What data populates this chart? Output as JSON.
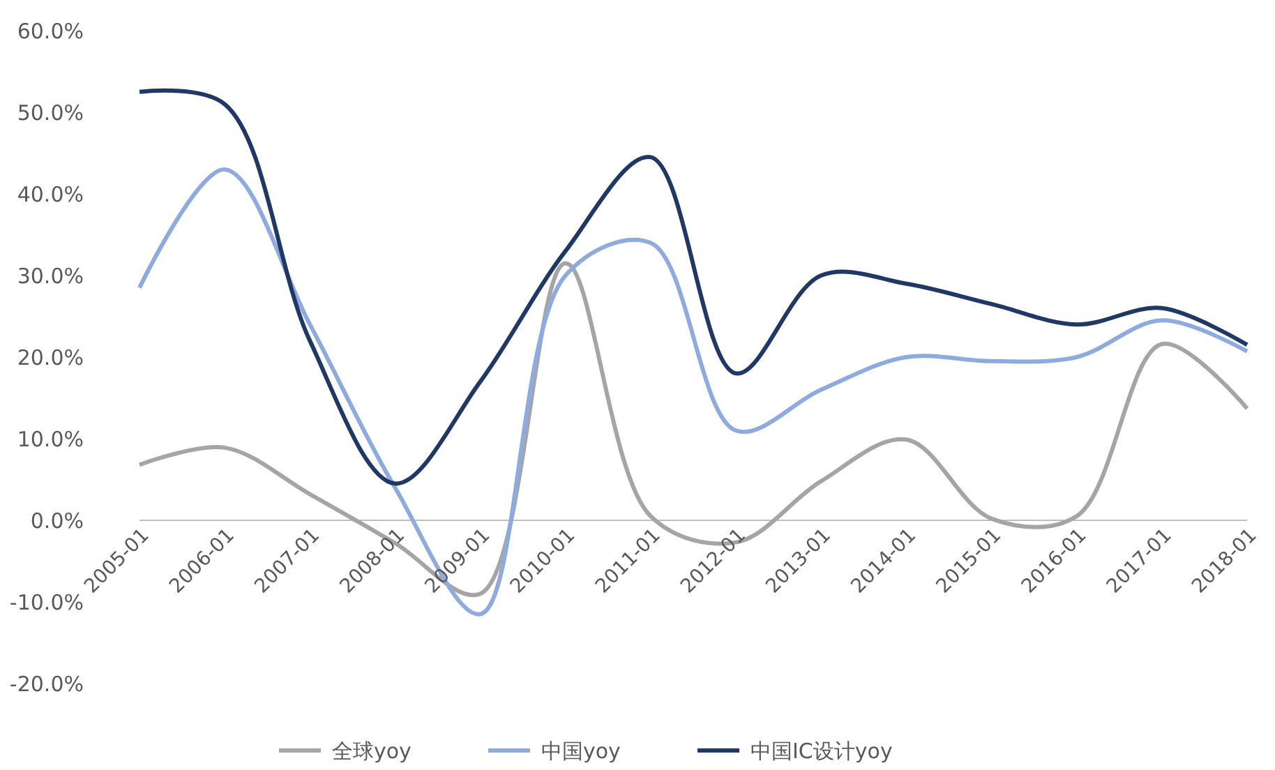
{
  "chart_data": {
    "type": "line",
    "categories": [
      "2005-01",
      "2006-01",
      "2007-01",
      "2008-01",
      "2009-01",
      "2010-01",
      "2011-01",
      "2012-01",
      "2013-01",
      "2014-01",
      "2015-01",
      "2016-01",
      "2017-01",
      "2018-01"
    ],
    "series": [
      {
        "name": "全球yoy",
        "color": "#a5a5a5",
        "values": [
          6.8,
          8.9,
          3.2,
          -2.8,
          -9,
          31.5,
          0.5,
          -2.7,
          4.8,
          9.9,
          0.2,
          0.5,
          21.6,
          13.7
        ]
      },
      {
        "name": "中国yoy",
        "color": "#8faadc",
        "values": [
          28.5,
          43,
          24,
          4,
          -11.5,
          30,
          34,
          11,
          16,
          20,
          19.5,
          20,
          24.5,
          20.7
        ]
      },
      {
        "name": "中国IC设计yoy",
        "color": "#203864",
        "values": [
          52.5,
          51,
          22,
          4.5,
          17,
          33,
          44.5,
          18,
          30,
          29,
          26.5,
          24,
          26,
          21.5
        ]
      }
    ],
    "ylim": [
      -20,
      60
    ],
    "yticks": [
      {
        "value": -20,
        "label": "-20.0%"
      },
      {
        "value": -10,
        "label": "-10.0%"
      },
      {
        "value": 0,
        "label": "0.0%"
      },
      {
        "value": 10,
        "label": "10.0%"
      },
      {
        "value": 20,
        "label": "20.0%"
      },
      {
        "value": 30,
        "label": "30.0%"
      },
      {
        "value": 40,
        "label": "40.0%"
      },
      {
        "value": 50,
        "label": "50.0%"
      },
      {
        "value": 60,
        "label": "60.0%"
      }
    ],
    "legend": "bottom",
    "marker": "none",
    "line_style": "solid"
  }
}
